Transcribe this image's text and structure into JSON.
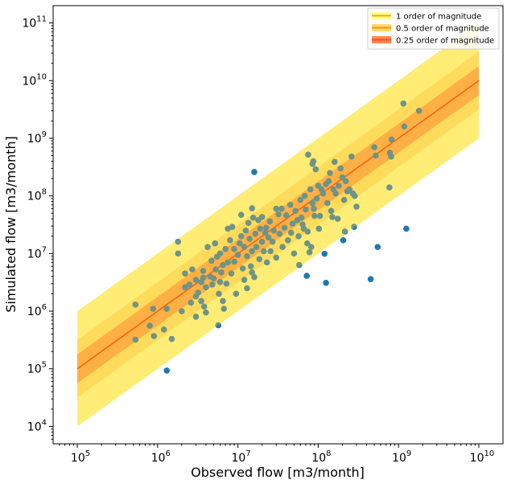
{
  "chart_data": {
    "type": "scatter",
    "x_scale": "log",
    "y_scale": "log",
    "xlabel": "Observed flow [m3/month]",
    "ylabel": "Simulated flow [m3/month]",
    "xlim": [
      50000,
      20000000000
    ],
    "ylim": [
      5000,
      200000000000
    ],
    "x_ticks": [
      {
        "base": "10",
        "exp": "5",
        "value": 100000
      },
      {
        "base": "10",
        "exp": "6",
        "value": 1000000
      },
      {
        "base": "10",
        "exp": "7",
        "value": 10000000
      },
      {
        "base": "10",
        "exp": "8",
        "value": 100000000
      },
      {
        "base": "10",
        "exp": "9",
        "value": 1000000000
      },
      {
        "base": "10",
        "exp": "10",
        "value": 10000000000
      }
    ],
    "y_ticks": [
      {
        "base": "10",
        "exp": "4",
        "value": 10000
      },
      {
        "base": "10",
        "exp": "5",
        "value": 100000
      },
      {
        "base": "10",
        "exp": "6",
        "value": 1000000
      },
      {
        "base": "10",
        "exp": "7",
        "value": 10000000
      },
      {
        "base": "10",
        "exp": "8",
        "value": 100000000
      },
      {
        "base": "10",
        "exp": "9",
        "value": 1000000000
      },
      {
        "base": "10",
        "exp": "10",
        "value": 10000000000
      },
      {
        "base": "10",
        "exp": "11",
        "value": 100000000000
      }
    ],
    "grid": false,
    "legend_position": "top-right",
    "reference_line": {
      "x": [
        100000,
        10000000000
      ],
      "y": [
        100000,
        10000000000
      ],
      "color": "#ff2200"
    },
    "bands": [
      {
        "name": "1 order of magnitude",
        "orders": 1,
        "color": "#ffff99",
        "line_color": "#ffa500"
      },
      {
        "name": "0.5 order of magnitude",
        "orders": 0.5,
        "color": "#ffd966",
        "line_color": "#ff8c1a"
      },
      {
        "name": "0.25 order of magnitude",
        "orders": 0.25,
        "color": "#ff8c42",
        "line_color": "#ff4444"
      }
    ],
    "point_color": "#1f77b4",
    "points": [
      [
        530000,
        1300000
      ],
      [
        530000,
        320000
      ],
      [
        800000,
        560000
      ],
      [
        880000,
        1100000
      ],
      [
        900000,
        370000
      ],
      [
        1200000,
        480000
      ],
      [
        1300000,
        93000
      ],
      [
        1300000,
        1100000
      ],
      [
        1500000,
        330000
      ],
      [
        1800000,
        16000000
      ],
      [
        1800000,
        10000000
      ],
      [
        2000000,
        1000000
      ],
      [
        2200000,
        2600000
      ],
      [
        2200000,
        4500000
      ],
      [
        2500000,
        2900000
      ],
      [
        2600000,
        1400000
      ],
      [
        2700000,
        5300000
      ],
      [
        3000000,
        3500000
      ],
      [
        3000000,
        1800000
      ],
      [
        3000000,
        800000
      ],
      [
        3200000,
        2100000
      ],
      [
        3500000,
        1500000
      ],
      [
        3500000,
        3200000
      ],
      [
        3700000,
        3800000
      ],
      [
        3700000,
        5000000
      ],
      [
        3800000,
        1200000
      ],
      [
        4000000,
        950000
      ],
      [
        4000000,
        2600000
      ],
      [
        4200000,
        13000000
      ],
      [
        4500000,
        4000000
      ],
      [
        4700000,
        7500000
      ],
      [
        4800000,
        2900000
      ],
      [
        5000000,
        3700000
      ],
      [
        5200000,
        15000000
      ],
      [
        5300000,
        5300000
      ],
      [
        5500000,
        8800000
      ],
      [
        5700000,
        570000
      ],
      [
        5800000,
        2000000
      ],
      [
        6000000,
        3200000
      ],
      [
        6000000,
        10000000
      ],
      [
        6200000,
        4700000
      ],
      [
        6500000,
        1500000
      ],
      [
        6500000,
        6300000
      ],
      [
        6700000,
        1100000
      ],
      [
        7000000,
        12000000
      ],
      [
        7200000,
        3000000
      ],
      [
        7500000,
        27000000
      ],
      [
        7500000,
        7000000
      ],
      [
        8000000,
        17000000
      ],
      [
        8300000,
        4500000
      ],
      [
        8500000,
        29000000
      ],
      [
        9000000,
        12000000
      ],
      [
        9000000,
        7200000
      ],
      [
        9500000,
        2000000
      ],
      [
        10000000,
        9500000
      ],
      [
        10500000,
        15000000
      ],
      [
        11000000,
        20000000
      ],
      [
        11000000,
        47000000
      ],
      [
        11500000,
        5500000
      ],
      [
        12000000,
        3500000
      ],
      [
        12000000,
        13000000
      ],
      [
        12500000,
        25000000
      ],
      [
        13000000,
        2500000
      ],
      [
        13000000,
        9000000
      ],
      [
        13500000,
        34000000
      ],
      [
        14000000,
        18000000
      ],
      [
        14500000,
        6000000
      ],
      [
        15000000,
        61000000
      ],
      [
        15000000,
        11000000
      ],
      [
        15000000,
        4700000
      ],
      [
        15500000,
        42000000
      ],
      [
        16000000,
        260000000
      ],
      [
        16000000,
        3900000
      ],
      [
        16500000,
        22000000
      ],
      [
        17000000,
        13000000
      ],
      [
        18000000,
        38000000
      ],
      [
        18500000,
        8000000
      ],
      [
        19000000,
        27000000
      ],
      [
        20000000,
        16000000
      ],
      [
        20000000,
        43000000
      ],
      [
        21000000,
        11000000
      ],
      [
        22000000,
        23000000
      ],
      [
        22500000,
        28000000
      ],
      [
        23000000,
        7000000
      ],
      [
        24000000,
        19000000
      ],
      [
        25000000,
        36000000
      ],
      [
        25500000,
        11000000
      ],
      [
        27000000,
        16000000
      ],
      [
        28000000,
        25000000
      ],
      [
        30000000,
        60000000
      ],
      [
        30000000,
        8500000
      ],
      [
        32000000,
        48000000
      ],
      [
        33000000,
        22000000
      ],
      [
        35000000,
        60000000
      ],
      [
        36000000,
        13000000
      ],
      [
        38000000,
        28000000
      ],
      [
        40000000,
        46000000
      ],
      [
        42000000,
        17000000
      ],
      [
        45000000,
        70000000
      ],
      [
        46000000,
        23000000
      ],
      [
        48000000,
        33000000
      ],
      [
        50000000,
        10000000
      ],
      [
        52000000,
        55000000
      ],
      [
        55000000,
        38000000
      ],
      [
        57000000,
        20000000
      ],
      [
        58000000,
        6300000
      ],
      [
        60000000,
        85000000
      ],
      [
        62000000,
        42000000
      ],
      [
        64000000,
        32000000
      ],
      [
        66000000,
        27000000
      ],
      [
        68000000,
        100000000
      ],
      [
        70000000,
        58000000
      ],
      [
        72000000,
        4100000
      ],
      [
        73000000,
        15000000
      ],
      [
        74000000,
        24000000
      ],
      [
        75000000,
        520000000
      ],
      [
        78000000,
        10500000
      ],
      [
        80000000,
        130000000
      ],
      [
        82000000,
        13000000
      ],
      [
        85000000,
        360000000
      ],
      [
        85000000,
        75000000
      ],
      [
        87000000,
        400000000
      ],
      [
        88000000,
        60000000
      ],
      [
        90000000,
        45000000
      ],
      [
        93000000,
        290000000
      ],
      [
        96000000,
        90000000
      ],
      [
        100000000,
        150000000
      ],
      [
        102000000,
        27000000
      ],
      [
        105000000,
        45000000
      ],
      [
        110000000,
        130000000
      ],
      [
        115000000,
        110000000
      ],
      [
        120000000,
        9900000
      ],
      [
        125000000,
        3100000
      ],
      [
        125000000,
        160000000
      ],
      [
        130000000,
        75000000
      ],
      [
        135000000,
        180000000
      ],
      [
        140000000,
        250000000
      ],
      [
        145000000,
        55000000
      ],
      [
        150000000,
        43000000
      ],
      [
        155000000,
        130000000
      ],
      [
        160000000,
        390000000
      ],
      [
        165000000,
        110000000
      ],
      [
        175000000,
        40000000
      ],
      [
        180000000,
        150000000
      ],
      [
        190000000,
        300000000
      ],
      [
        200000000,
        210000000
      ],
      [
        205000000,
        17000000
      ],
      [
        210000000,
        85000000
      ],
      [
        215000000,
        24000000
      ],
      [
        220000000,
        180000000
      ],
      [
        230000000,
        120000000
      ],
      [
        245000000,
        130000000
      ],
      [
        260000000,
        480000000
      ],
      [
        270000000,
        110000000
      ],
      [
        280000000,
        29000000
      ],
      [
        285000000,
        100000000
      ],
      [
        300000000,
        65000000
      ],
      [
        450000000,
        3600000
      ],
      [
        500000000,
        700000000
      ],
      [
        520000000,
        500000000
      ],
      [
        550000000,
        13000000
      ],
      [
        770000000,
        140000000
      ],
      [
        780000000,
        560000000
      ],
      [
        810000000,
        480000000
      ],
      [
        820000000,
        950000000
      ],
      [
        1150000000,
        4000000000
      ],
      [
        1180000000,
        1600000000
      ],
      [
        1250000000,
        27000000
      ],
      [
        1800000000,
        3000000000
      ]
    ]
  }
}
